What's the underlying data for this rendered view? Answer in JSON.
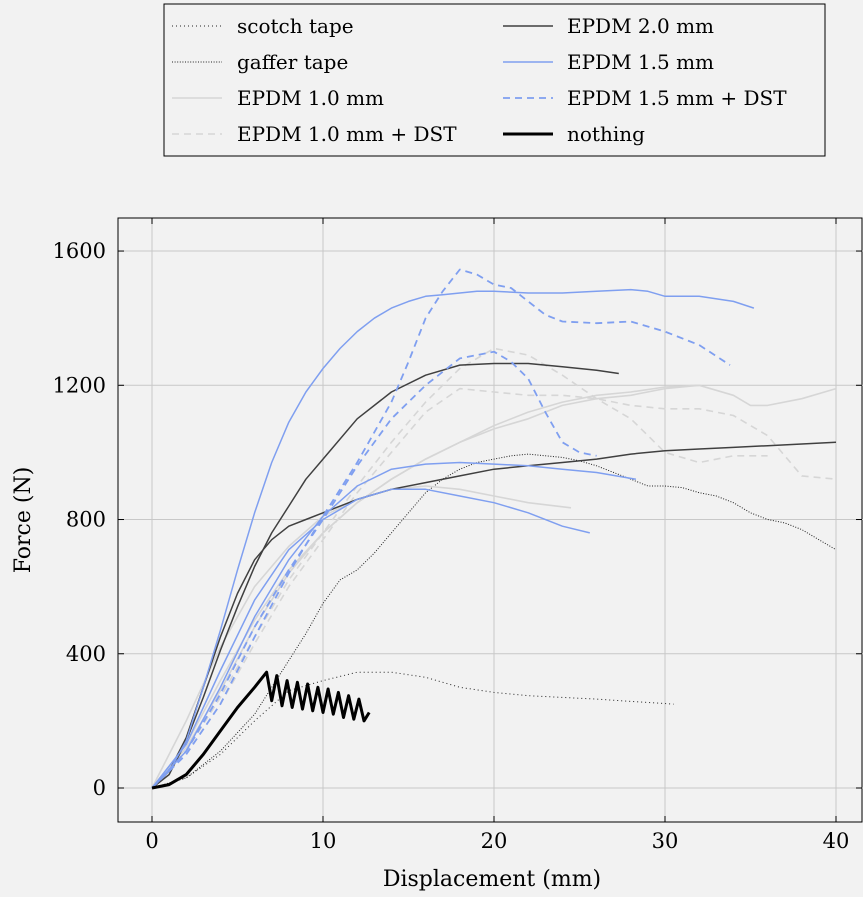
{
  "chart_data": {
    "type": "line",
    "xlabel": "Displacement (mm)",
    "ylabel": "Force (N)",
    "xlim": [
      -2,
      41
    ],
    "ylim": [
      -100,
      1700
    ],
    "xticks": [
      0,
      10,
      20,
      30,
      40
    ],
    "yticks": [
      0,
      400,
      800,
      1200,
      1600
    ],
    "grid": true,
    "legend_position": "top-center, above plot, 2 columns",
    "series": [
      {
        "name": "scotch tape",
        "color": "#222222",
        "style": "dotted",
        "width": 1,
        "curves": [
          {
            "x": [
              0,
              2,
              4,
              6,
              8,
              10,
              12,
              14,
              16,
              18,
              20,
              22,
              24,
              26,
              28,
              30.5
            ],
            "y": [
              0,
              30,
              100,
              200,
              290,
              320,
              345,
              345,
              330,
              300,
              285,
              275,
              270,
              265,
              258,
              250
            ]
          }
        ]
      },
      {
        "name": "gaffer tape",
        "color": "#222222",
        "style": "dense-dotted",
        "width": 1,
        "curves": [
          {
            "x": [
              0,
              2,
              4,
              6,
              8,
              9,
              10,
              11,
              12,
              13,
              14,
              15,
              16,
              17,
              18,
              19,
              20,
              21,
              22,
              23,
              24,
              25,
              26,
              27,
              28,
              29,
              30,
              31,
              32,
              33,
              34,
              35,
              36,
              37,
              38,
              39,
              40
            ],
            "y": [
              0,
              30,
              110,
              220,
              380,
              460,
              550,
              620,
              650,
              700,
              760,
              820,
              880,
              920,
              950,
              970,
              980,
              990,
              995,
              990,
              985,
              975,
              960,
              940,
              920,
              900,
              900,
              895,
              880,
              870,
              850,
              820,
              800,
              790,
              770,
              740,
              710
            ]
          }
        ]
      },
      {
        "name": "EPDM 1.0 mm",
        "color": "#d6d6d6",
        "style": "solid",
        "width": 1.6,
        "curves": [
          {
            "x": [
              0,
              2,
              4,
              6,
              8,
              10,
              12,
              14,
              16,
              18,
              20,
              22,
              24,
              26,
              28,
              30,
              32,
              34,
              35,
              36,
              38,
              40
            ],
            "y": [
              0,
              130,
              320,
              500,
              650,
              760,
              850,
              920,
              980,
              1030,
              1080,
              1120,
              1150,
              1170,
              1180,
              1195,
              1200,
              1170,
              1140,
              1140,
              1160,
              1190
            ]
          },
          {
            "x": [
              0,
              2,
              4,
              6,
              8,
              10,
              12,
              14,
              16,
              18,
              20,
              22,
              24.5
            ],
            "y": [
              0,
              200,
              420,
              600,
              720,
              810,
              860,
              890,
              900,
              890,
              870,
              850,
              835
            ]
          },
          {
            "x": [
              0,
              2,
              4,
              6,
              8,
              10,
              12,
              14,
              16,
              18,
              20,
              22,
              24,
              26,
              28,
              30,
              32
            ],
            "y": [
              0,
              120,
              290,
              480,
              640,
              760,
              850,
              920,
              980,
              1030,
              1070,
              1100,
              1140,
              1160,
              1170,
              1190,
              1200
            ]
          }
        ]
      },
      {
        "name": "EPDM 1.0 mm + DST",
        "color": "#d6d6d6",
        "style": "dashed",
        "width": 1.6,
        "curves": [
          {
            "x": [
              0,
              2,
              4,
              6,
              8,
              10,
              12,
              14,
              16,
              18,
              20,
              22,
              24,
              26,
              28,
              30,
              32,
              34,
              36
            ],
            "y": [
              0,
              110,
              270,
              450,
              620,
              760,
              900,
              1030,
              1150,
              1250,
              1310,
              1290,
              1230,
              1160,
              1100,
              1000,
              970,
              990,
              990
            ]
          },
          {
            "x": [
              0,
              2,
              4,
              6,
              8,
              10,
              12,
              14,
              16,
              18,
              20,
              22,
              24,
              26,
              28,
              30,
              32,
              34,
              36,
              38,
              40
            ],
            "y": [
              0,
              100,
              250,
              430,
              600,
              740,
              880,
              1000,
              1120,
              1190,
              1180,
              1170,
              1170,
              1160,
              1140,
              1130,
              1130,
              1110,
              1050,
              930,
              920
            ]
          }
        ]
      },
      {
        "name": "EPDM 2.0 mm",
        "color": "#404040",
        "style": "solid",
        "width": 1.5,
        "curves": [
          {
            "x": [
              0,
              1,
              2,
              3,
              4,
              5,
              6,
              7,
              8,
              9,
              10,
              12,
              14,
              16,
              18,
              20,
              22,
              24,
              26,
              27.3
            ],
            "y": [
              0,
              40,
              140,
              270,
              410,
              540,
              660,
              760,
              840,
              920,
              980,
              1100,
              1180,
              1230,
              1260,
              1265,
              1265,
              1255,
              1245,
              1235
            ]
          },
          {
            "x": [
              0,
              1,
              2,
              3,
              4,
              5,
              6,
              7,
              8,
              9,
              10,
              12,
              14,
              16,
              18,
              20,
              22,
              24,
              26,
              28,
              30,
              32,
              34,
              36,
              38,
              40
            ],
            "y": [
              0,
              50,
              150,
              300,
              450,
              580,
              680,
              740,
              780,
              800,
              820,
              860,
              890,
              910,
              930,
              950,
              960,
              970,
              980,
              995,
              1005,
              1010,
              1015,
              1020,
              1025,
              1030
            ]
          }
        ]
      },
      {
        "name": "EPDM 1.5 mm",
        "color": "#7f9ff0",
        "style": "solid",
        "width": 1.5,
        "curves": [
          {
            "x": [
              0,
              1,
              2,
              3,
              4,
              5,
              6,
              7,
              8,
              9,
              10,
              11,
              12,
              13,
              14,
              15,
              16,
              17,
              18,
              19,
              20,
              22,
              24,
              26,
              28,
              29,
              30,
              32,
              34,
              35.2
            ],
            "y": [
              0,
              50,
              140,
              300,
              470,
              650,
              820,
              970,
              1090,
              1180,
              1250,
              1310,
              1360,
              1400,
              1430,
              1450,
              1465,
              1470,
              1475,
              1480,
              1480,
              1475,
              1475,
              1480,
              1485,
              1480,
              1465,
              1465,
              1450,
              1430
            ]
          },
          {
            "x": [
              0,
              2,
              4,
              6,
              8,
              10,
              12,
              14,
              16,
              18,
              20,
              22,
              24,
              26,
              28.3
            ],
            "y": [
              0,
              110,
              300,
              510,
              680,
              810,
              900,
              950,
              965,
              970,
              965,
              960,
              950,
              940,
              920
            ]
          },
          {
            "x": [
              0,
              2,
              4,
              6,
              8,
              10,
              12,
              14,
              16,
              18,
              20,
              22,
              24,
              25.6
            ],
            "y": [
              0,
              130,
              350,
              560,
              710,
              800,
              860,
              890,
              890,
              870,
              850,
              820,
              780,
              760
            ]
          }
        ]
      },
      {
        "name": "EPDM 1.5 mm + DST",
        "color": "#7f9ff0",
        "style": "dashed",
        "width": 1.8,
        "curves": [
          {
            "x": [
              0,
              2,
              4,
              6,
              8,
              10,
              12,
              14,
              15,
              16,
              17,
              18,
              19,
              20,
              21,
              22,
              23,
              24,
              26,
              28,
              30,
              32,
              33.8
            ],
            "y": [
              0,
              100,
              250,
              450,
              640,
              810,
              970,
              1150,
              1270,
              1400,
              1480,
              1545,
              1530,
              1500,
              1490,
              1450,
              1410,
              1390,
              1385,
              1390,
              1360,
              1320,
              1260
            ]
          },
          {
            "x": [
              0,
              2,
              4,
              6,
              8,
              10,
              12,
              14,
              16,
              18,
              20,
              21,
              22,
              23,
              24,
              25,
              26
            ],
            "y": [
              0,
              110,
              280,
              480,
              650,
              800,
              960,
              1100,
              1200,
              1280,
              1300,
              1270,
              1220,
              1120,
              1030,
              1000,
              990
            ]
          }
        ]
      },
      {
        "name": "nothing",
        "color": "#000000",
        "style": "solid",
        "width": 3,
        "curves": [
          {
            "x": [
              0,
              1,
              2,
              3,
              4,
              5,
              6,
              6.7,
              7.0,
              7.3,
              7.6,
              7.9,
              8.2,
              8.5,
              8.8,
              9.1,
              9.4,
              9.7,
              10.0,
              10.3,
              10.6,
              10.9,
              11.2,
              11.5,
              11.8,
              12.1,
              12.4,
              12.7
            ],
            "y": [
              0,
              10,
              40,
              100,
              170,
              240,
              300,
              345,
              260,
              335,
              245,
              320,
              240,
              315,
              235,
              310,
              230,
              300,
              225,
              295,
              220,
              285,
              210,
              275,
              205,
              265,
              200,
              225
            ]
          }
        ]
      }
    ]
  }
}
